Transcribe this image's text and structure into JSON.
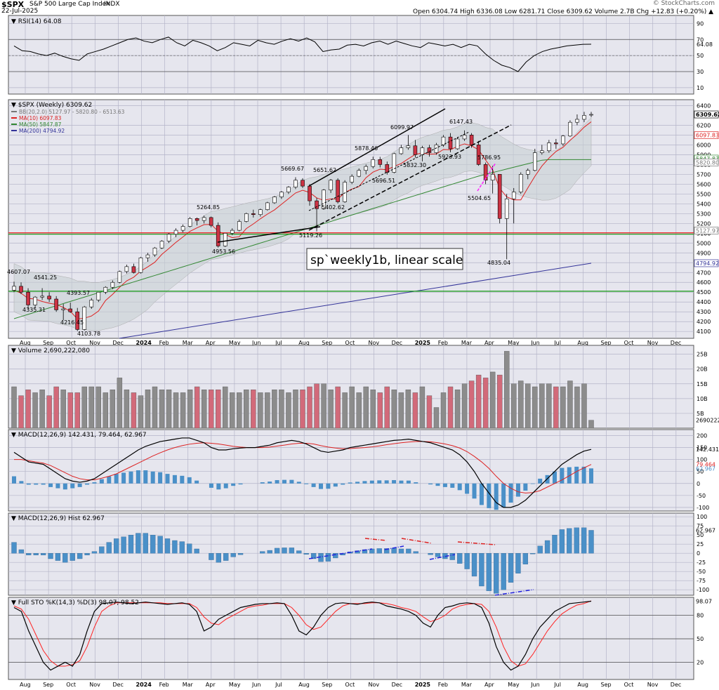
{
  "header": {
    "symbol": "$SPX",
    "name": "S&P 500 Large Cap Index",
    "exchange": "INDX",
    "date": "22-Jul-2025",
    "watermark": "© StockCharts.com",
    "quote_line": "Open 6304.74  High 6336.08  Low 6281.71  Close 6309.62  Volume 2.7B  Chg +12.83 (+0.20%) ▲"
  },
  "colors": {
    "panel_bg": "#e6e6ee",
    "grid": "#b4b4c8",
    "up": "#ffffff",
    "down": "#cc3344",
    "vol_up": "#8c8c8c",
    "vol_down": "#d26a7a",
    "ma10": "#dd2222",
    "ma50": "#338833",
    "ma200": "#333399",
    "bb_fill": "#c8d0d4",
    "macd_hist": "#4a90c8",
    "stoch_k": "#000000",
    "stoch_d": "#ff2222",
    "level_red": "#ee1111",
    "level_green": "#119911"
  },
  "chart_data": [
    {
      "type": "line",
      "panel": "rsi",
      "title": "RSI(14) 64.08",
      "y_ticks": [
        "90",
        "70",
        "50",
        "30",
        "10"
      ],
      "last_value_label": "64.08",
      "levels": [
        70,
        30
      ],
      "values": [
        62,
        56,
        55,
        52,
        50,
        53,
        49,
        46,
        44,
        52,
        55,
        58,
        62,
        66,
        70,
        72,
        68,
        66,
        70,
        73,
        66,
        62,
        69,
        66,
        62,
        56,
        60,
        66,
        64,
        62,
        69,
        66,
        64,
        68,
        71,
        68,
        72,
        67,
        55,
        57,
        58,
        63,
        64,
        62,
        66,
        68,
        64,
        68,
        65,
        62,
        60,
        66,
        64,
        62,
        64,
        60,
        64,
        62,
        52,
        44,
        38,
        35,
        30,
        42,
        50,
        55,
        58,
        60,
        62,
        63,
        64,
        64.08
      ]
    },
    {
      "type": "candlestick",
      "panel": "price",
      "title": "$SPX (Weekly) 6309.62",
      "legend": [
        {
          "label": "BB(20,2.0) 5127.97 - 5820.80 - 6513.63",
          "color": "#777777"
        },
        {
          "label": "MA(10) 6097.83",
          "color": "#dd2222"
        },
        {
          "label": "MA(50) 5847.87",
          "color": "#338833"
        },
        {
          "label": "MA(200) 4794.92",
          "color": "#333399"
        }
      ],
      "annotation": "sp`weekly1b, linear scale",
      "y_ticks": [
        "6400",
        "6200",
        "6100",
        "6000",
        "5900",
        "5800",
        "5700",
        "5600",
        "5500",
        "5400",
        "5300",
        "5200",
        "5100",
        "5000",
        "4900",
        "4800",
        "4700",
        "4600",
        "4500",
        "4400",
        "4300",
        "4200",
        "4100"
      ],
      "right_labels": [
        "6309.62",
        "6097.83",
        "5847.87",
        "5820.80",
        "5127.97",
        "4794.92"
      ],
      "horizontal_levels": [
        {
          "value": 5100,
          "color": "red"
        },
        {
          "value": 5100,
          "color": "green"
        },
        {
          "value": 4500,
          "color": "green"
        }
      ],
      "price_labels": [
        "4607.07",
        "4541.25",
        "4335.31",
        "4393.57",
        "4216.45",
        "4103.78",
        "5264.85",
        "4953.56",
        "5669.67",
        "5651.62",
        "5402.62",
        "5119.26",
        "5878.46",
        "5696.51",
        "6099.97",
        "5832.30",
        "5923.93",
        "6147.43",
        "5786.95",
        "5504.65",
        "4835.04"
      ],
      "ohlc": [
        [
          4520,
          4607,
          4500,
          4560
        ],
        [
          4560,
          4600,
          4480,
          4500
        ],
        [
          4500,
          4540,
          4330,
          4370
        ],
        [
          4370,
          4460,
          4335,
          4450
        ],
        [
          4450,
          4541,
          4420,
          4460
        ],
        [
          4460,
          4500,
          4400,
          4430
        ],
        [
          4430,
          4460,
          4300,
          4320
        ],
        [
          4320,
          4380,
          4216,
          4330
        ],
        [
          4330,
          4394,
          4290,
          4300
        ],
        [
          4300,
          4340,
          4104,
          4120
        ],
        [
          4120,
          4360,
          4110,
          4350
        ],
        [
          4350,
          4440,
          4330,
          4420
        ],
        [
          4420,
          4500,
          4400,
          4500
        ],
        [
          4500,
          4560,
          4480,
          4550
        ],
        [
          4550,
          4620,
          4530,
          4600
        ],
        [
          4600,
          4720,
          4590,
          4710
        ],
        [
          4710,
          4780,
          4690,
          4760
        ],
        [
          4760,
          4790,
          4690,
          4700
        ],
        [
          4700,
          4860,
          4690,
          4850
        ],
        [
          4850,
          4900,
          4810,
          4880
        ],
        [
          4880,
          4960,
          4860,
          4950
        ],
        [
          4950,
          5030,
          4940,
          5020
        ],
        [
          5020,
          5100,
          5000,
          5090
        ],
        [
          5090,
          5150,
          5060,
          5130
        ],
        [
          5130,
          5190,
          5110,
          5170
        ],
        [
          5170,
          5265,
          5160,
          5250
        ],
        [
          5250,
          5260,
          5180,
          5230
        ],
        [
          5230,
          5280,
          5200,
          5260
        ],
        [
          5260,
          5270,
          5160,
          5180
        ],
        [
          5180,
          5210,
          4954,
          4970
        ],
        [
          4970,
          5100,
          4960,
          5100
        ],
        [
          5100,
          5150,
          5080,
          5130
        ],
        [
          5130,
          5240,
          5120,
          5220
        ],
        [
          5220,
          5310,
          5210,
          5300
        ],
        [
          5300,
          5340,
          5260,
          5290
        ],
        [
          5290,
          5350,
          5270,
          5340
        ],
        [
          5340,
          5420,
          5330,
          5410
        ],
        [
          5410,
          5480,
          5400,
          5470
        ],
        [
          5470,
          5530,
          5450,
          5520
        ],
        [
          5520,
          5580,
          5500,
          5570
        ],
        [
          5570,
          5670,
          5550,
          5640
        ],
        [
          5640,
          5660,
          5560,
          5580
        ],
        [
          5580,
          5600,
          5380,
          5430
        ],
        [
          5430,
          5460,
          5119,
          5350
        ],
        [
          5350,
          5550,
          5340,
          5540
        ],
        [
          5540,
          5652,
          5510,
          5640
        ],
        [
          5640,
          5660,
          5403,
          5420
        ],
        [
          5420,
          5640,
          5410,
          5620
        ],
        [
          5620,
          5700,
          5600,
          5680
        ],
        [
          5680,
          5760,
          5670,
          5740
        ],
        [
          5740,
          5800,
          5700,
          5780
        ],
        [
          5780,
          5880,
          5760,
          5850
        ],
        [
          5850,
          5878,
          5770,
          5800
        ],
        [
          5800,
          5830,
          5697,
          5720
        ],
        [
          5720,
          5920,
          5710,
          5910
        ],
        [
          5910,
          6000,
          5900,
          5970
        ],
        [
          5970,
          6100,
          5950,
          5990
        ],
        [
          5990,
          6050,
          5870,
          5900
        ],
        [
          5900,
          5990,
          5832,
          5970
        ],
        [
          5970,
          6000,
          5880,
          5920
        ],
        [
          5920,
          6020,
          5900,
          6000
        ],
        [
          6000,
          6100,
          5980,
          6080
        ],
        [
          6080,
          6120,
          5924,
          5960
        ],
        [
          5960,
          6080,
          5950,
          6060
        ],
        [
          6060,
          6147,
          6040,
          6100
        ],
        [
          6100,
          6120,
          5970,
          6000
        ],
        [
          6000,
          6040,
          5787,
          5800
        ],
        [
          5800,
          5820,
          5600,
          5640
        ],
        [
          5640,
          5787,
          5505,
          5700
        ],
        [
          5700,
          5700,
          5200,
          5250
        ],
        [
          5250,
          5500,
          4835,
          5450
        ],
        [
          5450,
          5560,
          5200,
          5520
        ],
        [
          5520,
          5720,
          5500,
          5700
        ],
        [
          5700,
          5760,
          5650,
          5740
        ],
        [
          5740,
          5960,
          5730,
          5920
        ],
        [
          5920,
          6000,
          5900,
          5940
        ],
        [
          5940,
          6050,
          5920,
          6020
        ],
        [
          6020,
          6060,
          5960,
          6010
        ],
        [
          6010,
          6100,
          5990,
          6090
        ],
        [
          6090,
          6250,
          6080,
          6230
        ],
        [
          6230,
          6310,
          6200,
          6260
        ],
        [
          6260,
          6336,
          6230,
          6300
        ],
        [
          6305,
          6336,
          6282,
          6310
        ]
      ]
    },
    {
      "type": "bar",
      "panel": "volume",
      "title": "Volume 2,690,222,080",
      "y_ticks": [
        "25B",
        "20B",
        "15B",
        "10B",
        "5B"
      ],
      "last_value_label": "2690222",
      "values_billions": [
        14,
        11,
        13,
        12,
        13,
        11,
        14,
        13,
        12,
        12,
        14,
        14,
        14,
        12,
        13,
        17,
        13,
        12,
        11,
        13,
        14,
        13,
        13,
        12,
        12,
        13,
        14,
        13,
        13,
        13,
        14,
        12,
        12,
        13,
        13,
        12,
        12,
        13,
        13,
        12,
        13,
        13,
        14,
        15,
        15,
        13,
        14,
        12,
        14,
        12,
        14,
        13,
        12,
        14,
        13,
        12,
        13,
        12,
        14,
        11,
        7,
        12,
        14,
        13,
        15,
        16,
        18,
        17,
        19,
        18,
        26,
        15,
        16,
        15,
        14,
        15,
        15,
        14,
        14,
        16,
        14,
        15,
        2.69
      ]
    },
    {
      "type": "line",
      "panel": "macd",
      "title": "MACD(12,26,9) 142.431, 79.464, 62.967",
      "y_ticks": [
        "200",
        "150",
        "100",
        "50",
        "0",
        "-50",
        "-100"
      ],
      "right_labels": [
        "142.431",
        "79.464",
        "62.967"
      ],
      "macd": [
        130,
        110,
        90,
        85,
        80,
        60,
        40,
        20,
        10,
        5,
        10,
        20,
        40,
        60,
        80,
        100,
        120,
        140,
        155,
        165,
        175,
        180,
        185,
        190,
        190,
        180,
        170,
        150,
        140,
        140,
        145,
        148,
        150,
        150,
        155,
        160,
        170,
        175,
        180,
        175,
        165,
        150,
        135,
        130,
        135,
        140,
        150,
        155,
        160,
        165,
        170,
        175,
        180,
        182,
        185,
        180,
        175,
        170,
        160,
        150,
        140,
        120,
        90,
        50,
        0,
        -40,
        -80,
        -100,
        -100,
        -90,
        -70,
        -40,
        -10,
        20,
        50,
        80,
        100,
        120,
        135,
        142.4
      ],
      "signal": [
        100,
        100,
        95,
        90,
        85,
        75,
        60,
        45,
        30,
        20,
        15,
        15,
        22,
        30,
        40,
        55,
        70,
        85,
        100,
        115,
        128,
        140,
        150,
        158,
        164,
        168,
        170,
        168,
        165,
        160,
        155,
        152,
        150,
        150,
        150,
        152,
        156,
        160,
        165,
        168,
        168,
        165,
        158,
        152,
        148,
        145,
        146,
        148,
        150,
        153,
        157,
        162,
        166,
        170,
        173,
        175,
        175,
        174,
        170,
        165,
        158,
        148,
        133,
        113,
        90,
        63,
        30,
        0,
        -20,
        -35,
        -40,
        -38,
        -30,
        -15,
        0,
        15,
        32,
        50,
        65,
        79.5
      ],
      "hist": [
        30,
        10,
        -5,
        -5,
        -5,
        -15,
        -20,
        -25,
        -20,
        -15,
        -5,
        5,
        18,
        30,
        40,
        45,
        50,
        55,
        55,
        50,
        47,
        40,
        35,
        32,
        26,
        12,
        0,
        -18,
        -25,
        -20,
        -10,
        -4,
        0,
        0,
        5,
        8,
        14,
        15,
        15,
        7,
        -3,
        -15,
        -23,
        -22,
        -13,
        -5,
        4,
        7,
        10,
        12,
        13,
        13,
        14,
        12,
        12,
        5,
        0,
        -4,
        -10,
        -15,
        -18,
        -28,
        -43,
        -63,
        -90,
        -103,
        -110,
        -100,
        -80,
        -55,
        -30,
        -2,
        20,
        35,
        50,
        65,
        68,
        70,
        70,
        62.97
      ]
    },
    {
      "type": "bar",
      "panel": "macd_hist",
      "title": "MACD(12,26,9) Hist 62.967",
      "y_ticks": [
        "100",
        "75",
        "50",
        "25",
        "0",
        "-25",
        "-50",
        "-75",
        "-100"
      ],
      "last_value_label": "62.967",
      "values": [
        30,
        10,
        -5,
        -5,
        -5,
        -15,
        -20,
        -25,
        -20,
        -15,
        -5,
        5,
        18,
        30,
        40,
        45,
        50,
        55,
        55,
        50,
        47,
        40,
        35,
        32,
        26,
        12,
        0,
        -18,
        -25,
        -20,
        -10,
        -4,
        0,
        0,
        5,
        8,
        14,
        15,
        15,
        7,
        -3,
        -15,
        -23,
        -22,
        -13,
        -5,
        4,
        7,
        10,
        12,
        13,
        13,
        14,
        12,
        12,
        5,
        0,
        -4,
        -10,
        -15,
        -18,
        -28,
        -43,
        -63,
        -90,
        -103,
        -110,
        -100,
        -80,
        -55,
        -30,
        -2,
        20,
        35,
        50,
        65,
        68,
        70,
        70,
        62.97
      ]
    },
    {
      "type": "line",
      "panel": "stoch",
      "title": "Full STO %K(14,3) %D(3) 98.07, 98.52",
      "y_ticks": [
        "80",
        "50",
        "20"
      ],
      "last_value_label": "98.07",
      "levels": [
        80,
        50,
        20
      ],
      "k": [
        90,
        85,
        60,
        40,
        20,
        10,
        15,
        20,
        15,
        30,
        60,
        85,
        95,
        96,
        97,
        96,
        95,
        96,
        97,
        96,
        95,
        94,
        95,
        96,
        94,
        85,
        60,
        65,
        75,
        80,
        85,
        90,
        92,
        94,
        95,
        95,
        96,
        95,
        80,
        60,
        55,
        65,
        80,
        90,
        95,
        96,
        95,
        94,
        96,
        97,
        96,
        92,
        90,
        88,
        85,
        80,
        70,
        65,
        80,
        90,
        92,
        95,
        96,
        95,
        90,
        70,
        40,
        20,
        10,
        15,
        30,
        50,
        65,
        75,
        85,
        90,
        95,
        96,
        97,
        98.07
      ],
      "d": [
        92,
        88,
        75,
        55,
        35,
        22,
        15,
        15,
        17,
        22,
        40,
        65,
        85,
        92,
        96,
        96,
        96,
        96,
        96,
        96,
        96,
        95,
        95,
        95,
        95,
        90,
        78,
        70,
        68,
        75,
        80,
        85,
        90,
        92,
        93,
        95,
        95,
        95,
        90,
        80,
        68,
        62,
        65,
        75,
        85,
        92,
        95,
        95,
        95,
        96,
        96,
        95,
        93,
        90,
        88,
        85,
        78,
        72,
        75,
        80,
        88,
        92,
        94,
        95,
        94,
        85,
        65,
        40,
        22,
        15,
        18,
        30,
        45,
        60,
        72,
        82,
        88,
        93,
        95,
        98.52
      ]
    }
  ],
  "x_axis": {
    "labels": [
      "Aug",
      "Sep",
      "Oct",
      "Nov",
      "Dec",
      "2024",
      "Feb",
      "Mar",
      "Apr",
      "May",
      "Jun",
      "Jul",
      "Aug",
      "Sep",
      "Oct",
      "Nov",
      "Dec",
      "2025",
      "Feb",
      "Mar",
      "Apr",
      "May",
      "Jun",
      "Jul",
      "Aug",
      "Sep",
      "Oct",
      "Nov",
      "Dec"
    ]
  }
}
